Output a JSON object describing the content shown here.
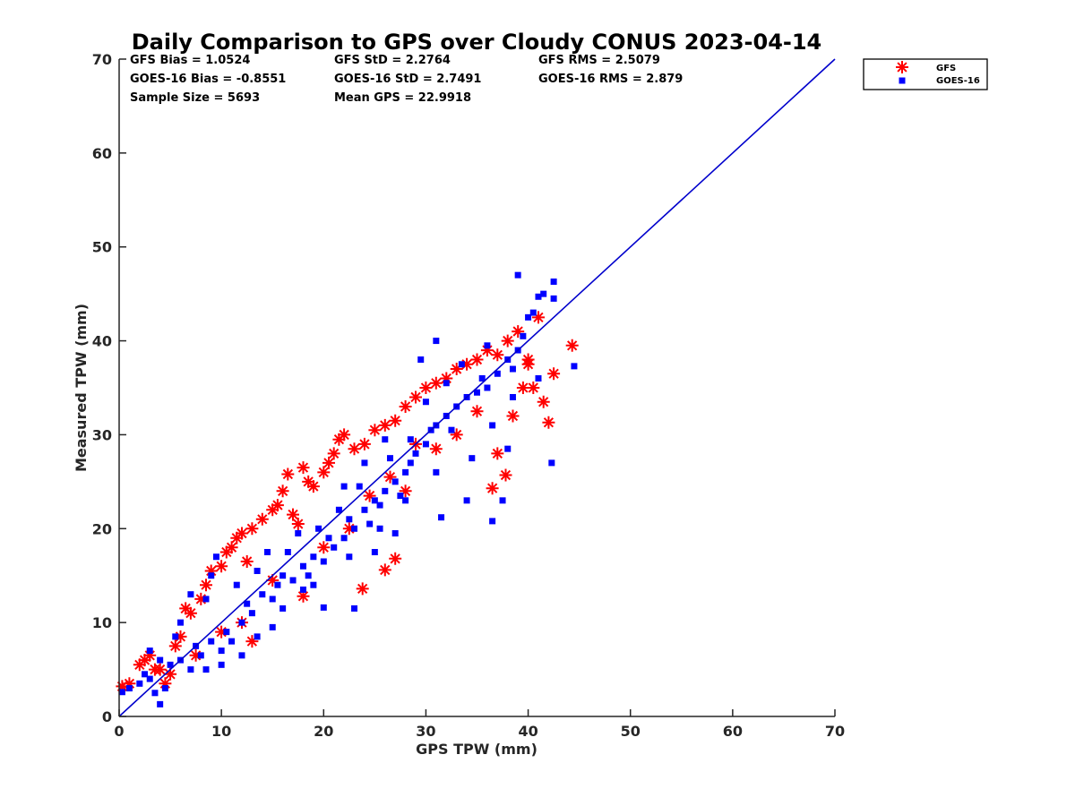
{
  "chart_data": {
    "type": "scatter",
    "title": "Daily Comparison to GPS over Cloudy CONUS 2023-04-14",
    "xlabel": "GPS TPW (mm)",
    "ylabel": "Measured TPW (mm)",
    "xlim": [
      0,
      70
    ],
    "ylim": [
      0,
      70
    ],
    "xticks": [
      0,
      10,
      20,
      30,
      40,
      50,
      60,
      70
    ],
    "yticks": [
      0,
      10,
      20,
      30,
      40,
      50,
      60,
      70
    ],
    "grid": false,
    "legend_position": "outside top-right",
    "reference_line": {
      "x": [
        0,
        70
      ],
      "y": [
        0,
        70
      ],
      "color": "#0000cc"
    },
    "stats": [
      [
        "GFS Bias = 1.0524",
        "GFS StD = 2.2764",
        "GFS RMS = 2.5079"
      ],
      [
        "GOES-16 Bias = -0.8551",
        "GOES-16 StD = 2.7491",
        "GOES-16 RMS = 2.879"
      ],
      [
        "Sample Size = 5693",
        "Mean GPS = 22.9918",
        ""
      ]
    ],
    "series": [
      {
        "name": "GFS",
        "marker": "asterisk",
        "color": "#ff0000",
        "points": [
          [
            0.3,
            3.2
          ],
          [
            1.0,
            3.5
          ],
          [
            2.0,
            5.5
          ],
          [
            2.5,
            6.0
          ],
          [
            3.0,
            6.5
          ],
          [
            4.0,
            5.0
          ],
          [
            5.0,
            4.5
          ],
          [
            5.5,
            7.5
          ],
          [
            6.0,
            8.5
          ],
          [
            6.5,
            11.5
          ],
          [
            7.0,
            11.0
          ],
          [
            8.0,
            12.5
          ],
          [
            8.5,
            14.0
          ],
          [
            9.0,
            15.5
          ],
          [
            10.0,
            16.0
          ],
          [
            10.5,
            17.5
          ],
          [
            11.0,
            18.0
          ],
          [
            11.5,
            19.0
          ],
          [
            12.0,
            19.5
          ],
          [
            12.5,
            16.5
          ],
          [
            13.0,
            20.0
          ],
          [
            14.0,
            21.0
          ],
          [
            15.0,
            22.0
          ],
          [
            15.5,
            22.5
          ],
          [
            16.0,
            24.0
          ],
          [
            16.5,
            25.8
          ],
          [
            17.0,
            21.5
          ],
          [
            17.5,
            20.5
          ],
          [
            18.0,
            26.5
          ],
          [
            18.5,
            25.0
          ],
          [
            19.0,
            24.5
          ],
          [
            20.0,
            26.0
          ],
          [
            20.5,
            27.0
          ],
          [
            21.0,
            28.0
          ],
          [
            21.5,
            29.5
          ],
          [
            22.0,
            30.0
          ],
          [
            23.0,
            28.5
          ],
          [
            24.0,
            29.0
          ],
          [
            25.0,
            30.5
          ],
          [
            26.0,
            31.0
          ],
          [
            27.0,
            31.5
          ],
          [
            28.0,
            33.0
          ],
          [
            29.0,
            34.0
          ],
          [
            30.0,
            35.0
          ],
          [
            31.0,
            35.5
          ],
          [
            32.0,
            36.0
          ],
          [
            33.0,
            37.0
          ],
          [
            34.0,
            37.5
          ],
          [
            35.0,
            38.0
          ],
          [
            36.0,
            39.0
          ],
          [
            37.0,
            38.5
          ],
          [
            38.0,
            40.0
          ],
          [
            39.0,
            41.0
          ],
          [
            40.0,
            38.0
          ],
          [
            40.5,
            35.0
          ],
          [
            41.0,
            42.5
          ],
          [
            41.5,
            33.5
          ],
          [
            42.5,
            36.5
          ],
          [
            42.0,
            31.3
          ],
          [
            44.3,
            39.5
          ],
          [
            37.0,
            28.0
          ],
          [
            37.8,
            25.7
          ],
          [
            36.5,
            24.3
          ],
          [
            27.0,
            16.8
          ],
          [
            26.0,
            15.6
          ],
          [
            23.8,
            13.6
          ],
          [
            18.0,
            12.8
          ],
          [
            13.0,
            8.0
          ],
          [
            12.0,
            10.0
          ],
          [
            26.5,
            25.5
          ],
          [
            28.0,
            24.0
          ],
          [
            31.0,
            28.5
          ],
          [
            33.0,
            30.0
          ],
          [
            35.0,
            32.5
          ],
          [
            38.5,
            32.0
          ],
          [
            39.5,
            35.0
          ],
          [
            40.0,
            37.5
          ],
          [
            22.5,
            20.0
          ],
          [
            20.0,
            18.0
          ],
          [
            15.0,
            14.5
          ],
          [
            10.0,
            9.0
          ],
          [
            7.5,
            6.5
          ],
          [
            4.5,
            3.5
          ],
          [
            3.5,
            5.0
          ],
          [
            29.0,
            29.0
          ],
          [
            24.5,
            23.5
          ]
        ]
      },
      {
        "name": "GOES-16",
        "marker": "square",
        "color": "#0000ff",
        "points": [
          [
            0.3,
            2.6
          ],
          [
            1.0,
            3.0
          ],
          [
            2.0,
            3.5
          ],
          [
            3.0,
            4.0
          ],
          [
            3.5,
            2.5
          ],
          [
            4.0,
            1.3
          ],
          [
            4.5,
            3.0
          ],
          [
            5.0,
            5.5
          ],
          [
            6.0,
            6.0
          ],
          [
            7.0,
            5.0
          ],
          [
            7.5,
            7.5
          ],
          [
            8.0,
            6.5
          ],
          [
            8.5,
            5.0
          ],
          [
            9.0,
            8.0
          ],
          [
            10.0,
            7.0
          ],
          [
            10.5,
            9.0
          ],
          [
            11.0,
            8.0
          ],
          [
            12.0,
            10.0
          ],
          [
            12.5,
            12.0
          ],
          [
            13.0,
            11.0
          ],
          [
            14.0,
            13.0
          ],
          [
            15.0,
            12.5
          ],
          [
            15.5,
            14.0
          ],
          [
            16.0,
            15.0
          ],
          [
            17.0,
            14.5
          ],
          [
            18.0,
            16.0
          ],
          [
            18.5,
            15.0
          ],
          [
            19.0,
            17.0
          ],
          [
            20.0,
            16.5
          ],
          [
            20.5,
            19.0
          ],
          [
            21.0,
            18.0
          ],
          [
            22.0,
            19.0
          ],
          [
            22.5,
            21.0
          ],
          [
            23.0,
            20.0
          ],
          [
            24.0,
            22.0
          ],
          [
            24.5,
            20.5
          ],
          [
            25.0,
            23.0
          ],
          [
            25.5,
            22.5
          ],
          [
            26.0,
            24.0
          ],
          [
            27.0,
            25.0
          ],
          [
            27.5,
            23.5
          ],
          [
            28.0,
            26.0
          ],
          [
            28.5,
            27.0
          ],
          [
            29.0,
            28.0
          ],
          [
            30.0,
            29.0
          ],
          [
            30.5,
            30.5
          ],
          [
            31.0,
            31.0
          ],
          [
            32.0,
            32.0
          ],
          [
            32.5,
            30.5
          ],
          [
            33.0,
            33.0
          ],
          [
            34.0,
            34.0
          ],
          [
            35.0,
            34.5
          ],
          [
            35.5,
            36.0
          ],
          [
            36.0,
            35.0
          ],
          [
            37.0,
            36.5
          ],
          [
            38.0,
            38.0
          ],
          [
            38.5,
            37.0
          ],
          [
            39.0,
            39.0
          ],
          [
            39.5,
            40.5
          ],
          [
            40.0,
            42.5
          ],
          [
            40.5,
            43.0
          ],
          [
            41.0,
            44.7
          ],
          [
            41.5,
            45.0
          ],
          [
            39.0,
            47.0
          ],
          [
            42.5,
            46.3
          ],
          [
            42.5,
            44.5
          ],
          [
            44.5,
            37.3
          ],
          [
            42.3,
            27.0
          ],
          [
            38.0,
            28.5
          ],
          [
            37.5,
            23.0
          ],
          [
            36.5,
            20.8
          ],
          [
            34.0,
            23.0
          ],
          [
            31.5,
            21.2
          ],
          [
            23.0,
            11.5
          ],
          [
            20.0,
            11.6
          ],
          [
            13.5,
            8.5
          ],
          [
            9.5,
            17.0
          ],
          [
            9.0,
            15.0
          ],
          [
            8.5,
            12.5
          ],
          [
            7.0,
            13.0
          ],
          [
            6.0,
            10.0
          ],
          [
            5.5,
            8.5
          ],
          [
            4.0,
            6.0
          ],
          [
            3.0,
            7.0
          ],
          [
            2.5,
            4.5
          ],
          [
            11.5,
            14.0
          ],
          [
            13.5,
            15.5
          ],
          [
            16.5,
            17.5
          ],
          [
            19.5,
            20.0
          ],
          [
            21.5,
            22.0
          ],
          [
            23.5,
            24.5
          ],
          [
            26.5,
            27.5
          ],
          [
            28.5,
            29.5
          ],
          [
            30.0,
            33.5
          ],
          [
            32.0,
            35.5
          ],
          [
            33.5,
            37.5
          ],
          [
            36.0,
            39.5
          ],
          [
            29.5,
            38.0
          ],
          [
            31.0,
            40.0
          ],
          [
            25.0,
            17.5
          ],
          [
            27.0,
            19.5
          ],
          [
            18.0,
            13.5
          ],
          [
            15.0,
            9.5
          ],
          [
            12.0,
            6.5
          ],
          [
            10.0,
            5.5
          ],
          [
            14.5,
            17.5
          ],
          [
            17.5,
            19.5
          ],
          [
            22.0,
            24.5
          ],
          [
            24.0,
            27.0
          ],
          [
            26.0,
            29.5
          ],
          [
            31.0,
            26.0
          ],
          [
            34.5,
            27.5
          ],
          [
            36.5,
            31.0
          ],
          [
            38.5,
            34.0
          ],
          [
            41.0,
            36.0
          ],
          [
            16.0,
            11.5
          ],
          [
            19.0,
            14.0
          ],
          [
            22.5,
            17.0
          ],
          [
            25.5,
            20.0
          ],
          [
            28.0,
            23.0
          ]
        ]
      }
    ]
  }
}
